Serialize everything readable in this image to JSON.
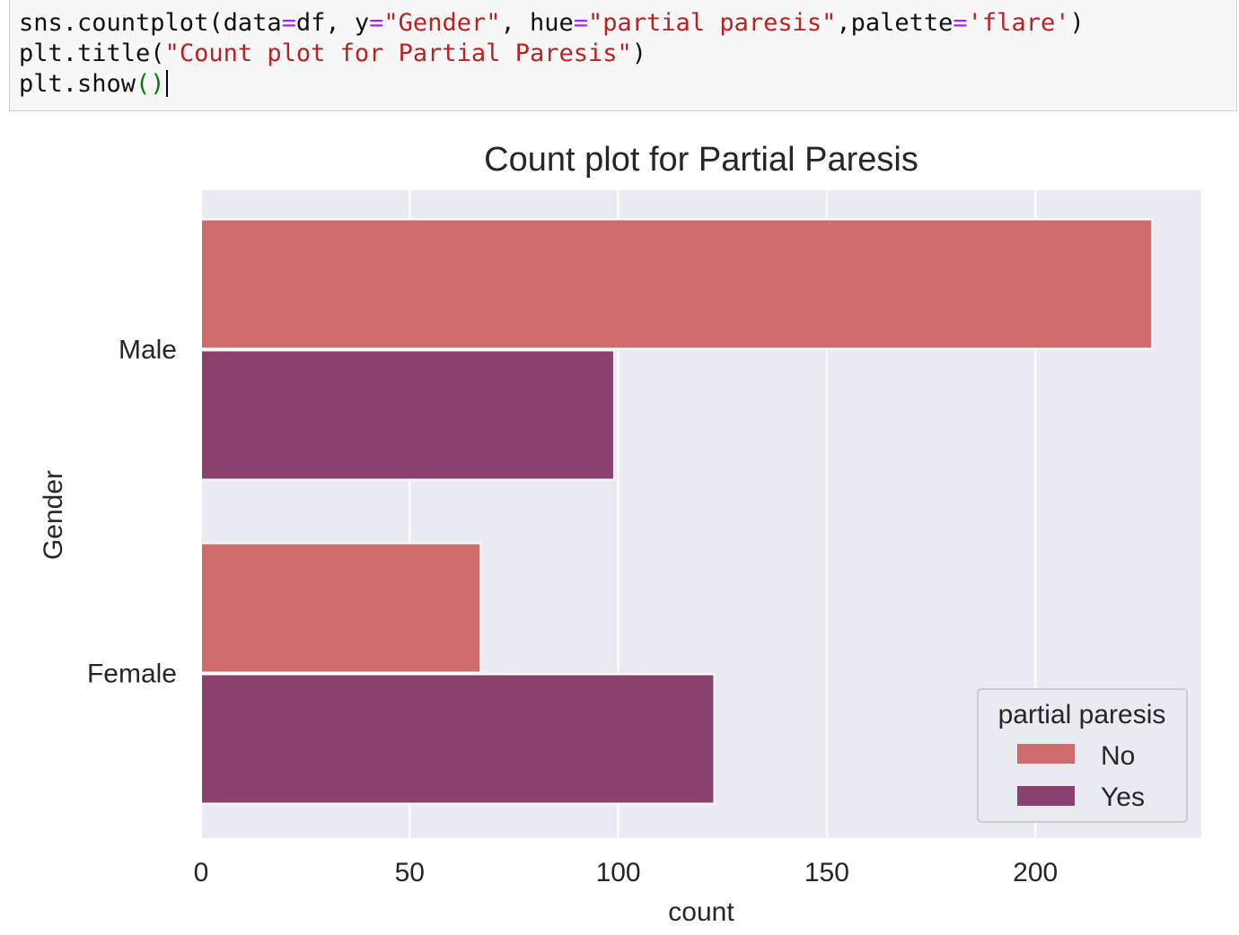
{
  "code_cell": {
    "lines": [
      [
        {
          "t": "sns.countplot(data",
          "c": "plain"
        },
        {
          "t": "=",
          "c": "op"
        },
        {
          "t": "df, y",
          "c": "plain"
        },
        {
          "t": "=",
          "c": "op"
        },
        {
          "t": "\"Gender\"",
          "c": "str"
        },
        {
          "t": ", hue",
          "c": "plain"
        },
        {
          "t": "=",
          "c": "op"
        },
        {
          "t": "\"partial paresis\"",
          "c": "str"
        },
        {
          "t": ",palette",
          "c": "plain"
        },
        {
          "t": "=",
          "c": "op"
        },
        {
          "t": "'flare'",
          "c": "str"
        },
        {
          "t": ")",
          "c": "plain"
        }
      ],
      [
        {
          "t": "plt.title(",
          "c": "plain"
        },
        {
          "t": "\"Count plot for Partial Paresis\"",
          "c": "str"
        },
        {
          "t": ")",
          "c": "plain"
        }
      ],
      [
        {
          "t": "plt.show",
          "c": "plain"
        },
        {
          "t": "()",
          "c": "paren"
        }
      ]
    ]
  },
  "chart_data": {
    "type": "bar",
    "orientation": "horizontal",
    "title": "Count plot for Partial Paresis",
    "xlabel": "count",
    "ylabel": "Gender",
    "categories": [
      "Male",
      "Female"
    ],
    "series": [
      {
        "name": "No",
        "values": [
          228,
          67
        ],
        "color": "#cf6b6a"
      },
      {
        "name": "Yes",
        "values": [
          99,
          123
        ],
        "color": "#8b416d"
      }
    ],
    "xlim": [
      0,
      240
    ],
    "xticks": [
      0,
      50,
      100,
      150,
      200
    ],
    "grid": true,
    "background": "#eaeaf2",
    "legend": {
      "title": "partial paresis",
      "placement": "lower-right",
      "entries": [
        "No",
        "Yes"
      ]
    }
  }
}
